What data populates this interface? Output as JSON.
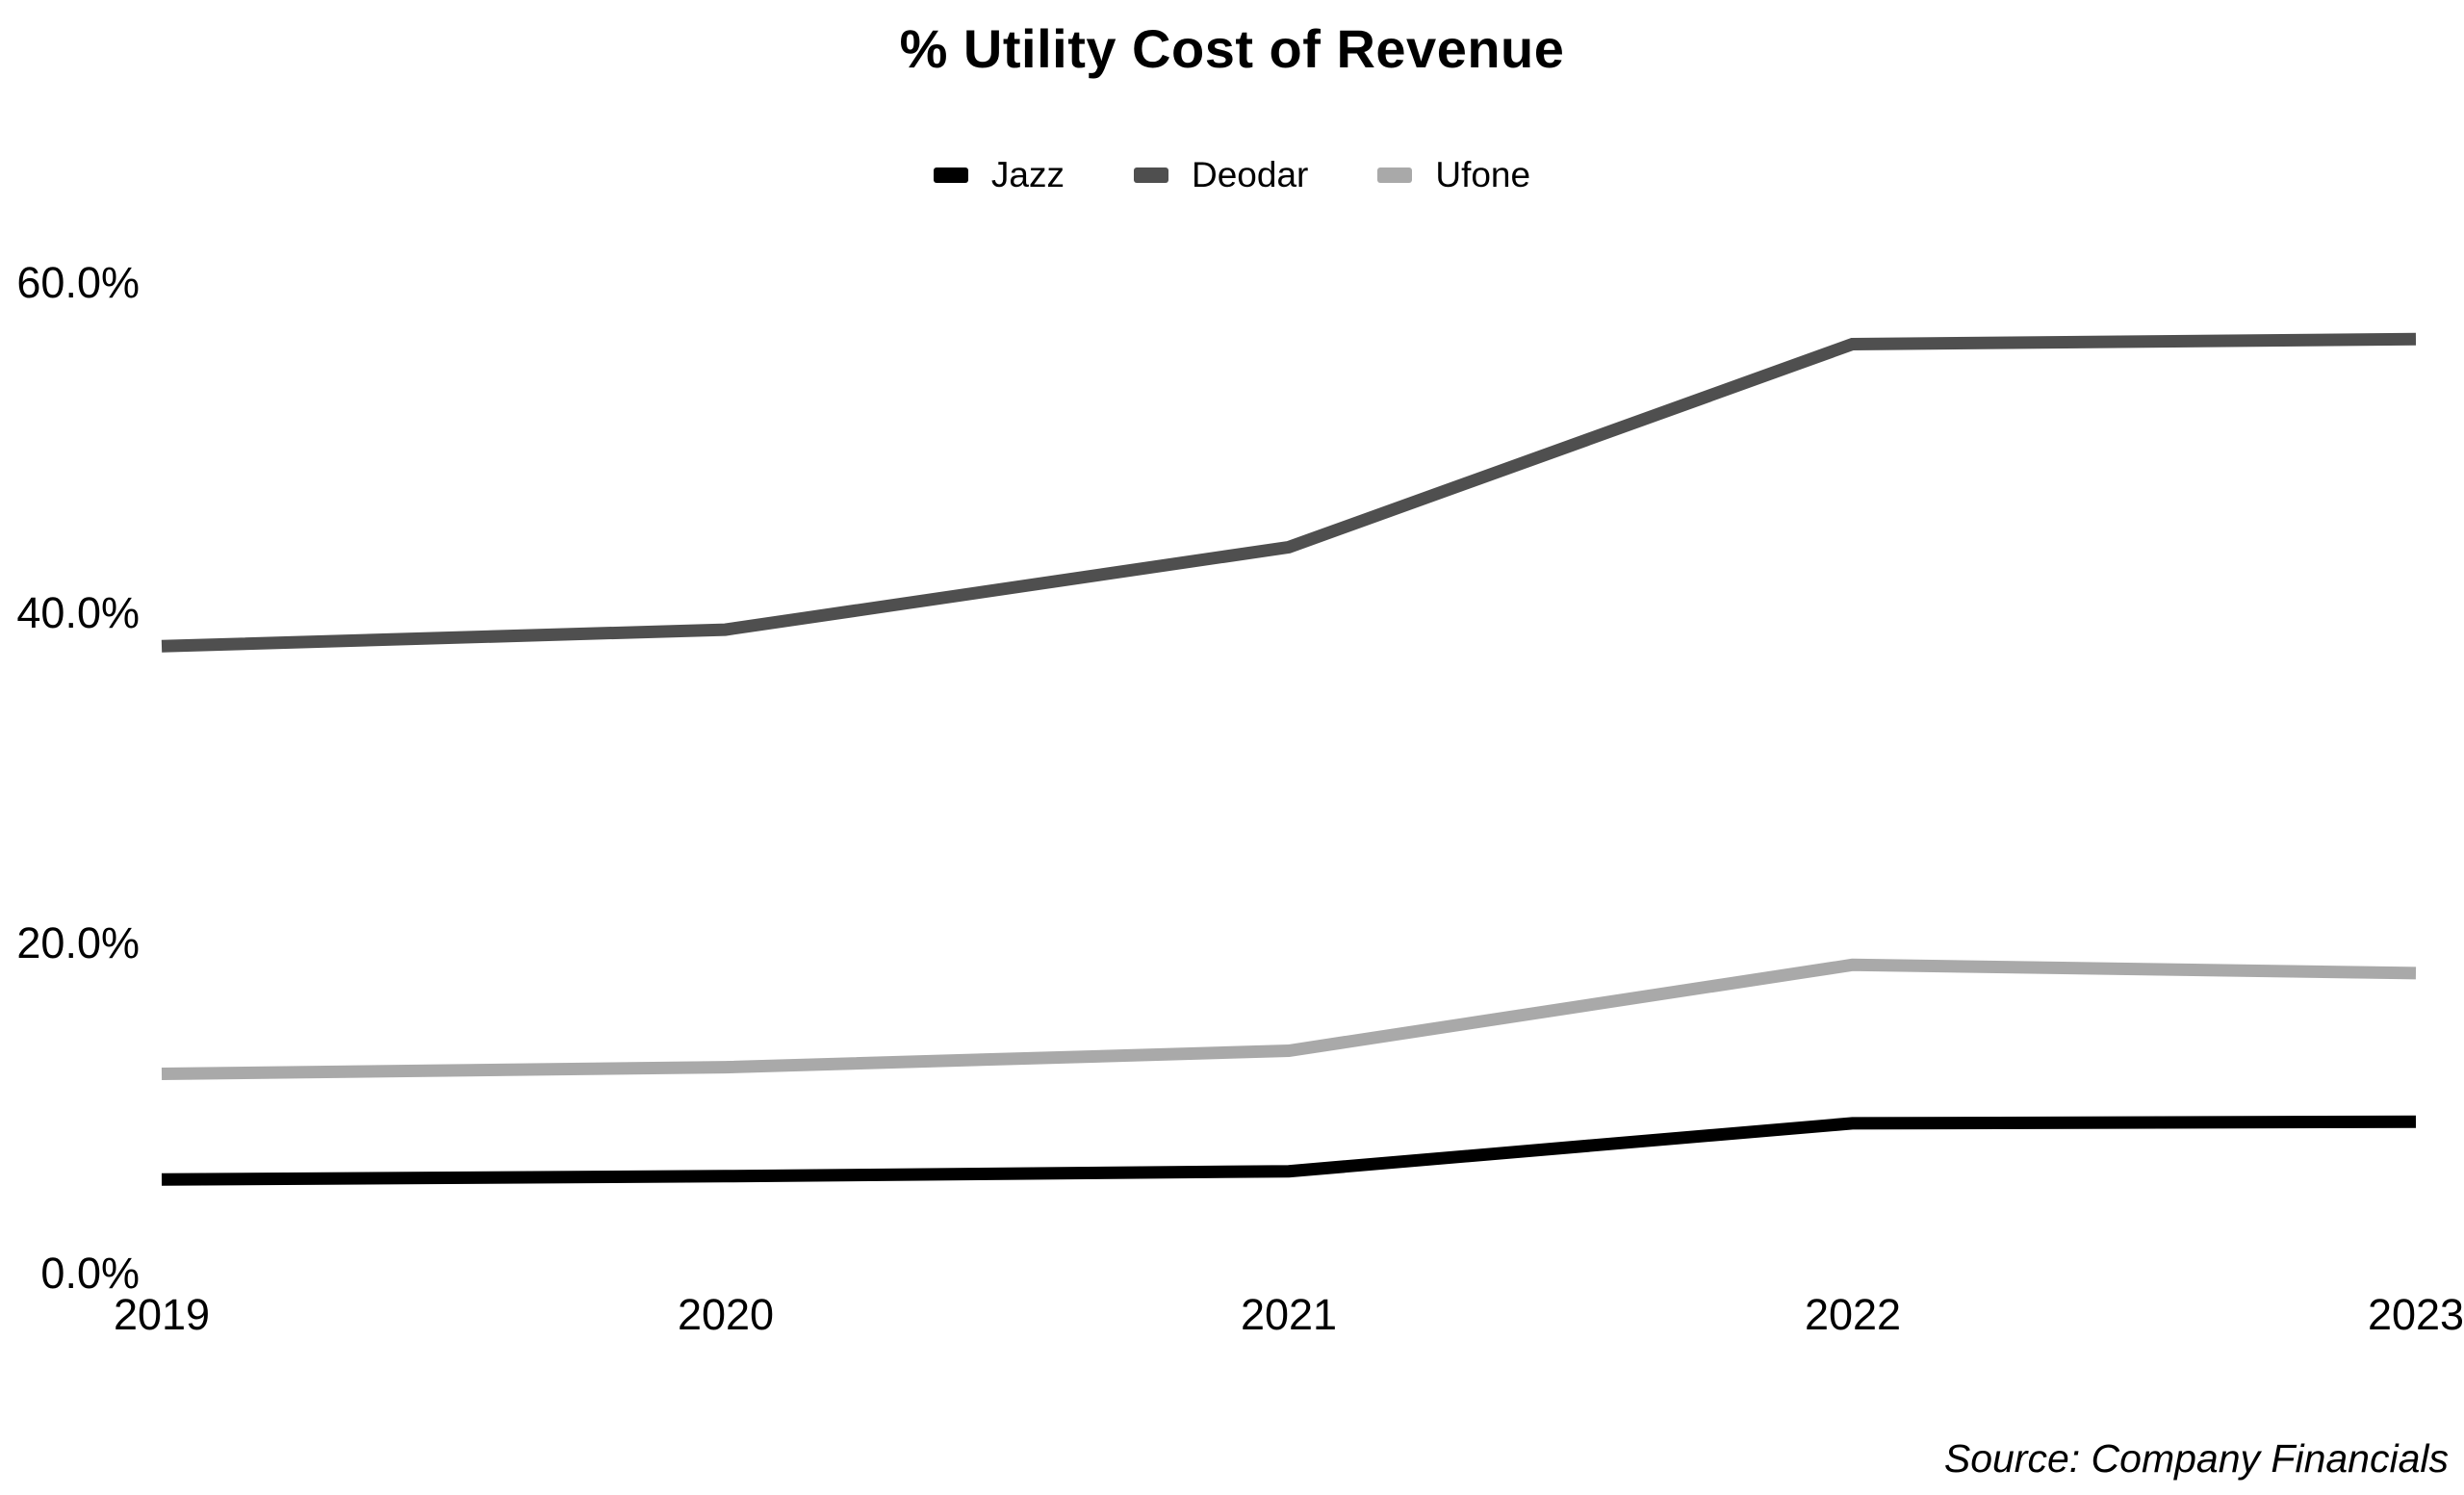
{
  "chart": {
    "title": "% Utility Cost of Revenue",
    "source_note": "Source: Company Financials"
  },
  "chart_data": {
    "type": "line",
    "title": "% Utility Cost of Revenue",
    "categories": [
      "2019",
      "2020",
      "2021",
      "2022",
      "2023"
    ],
    "series": [
      {
        "name": "Jazz",
        "color": "#000000",
        "values": [
          5.7,
          5.9,
          6.2,
          9.1,
          9.2
        ]
      },
      {
        "name": "Deodar",
        "color": "#4f4f4f",
        "values": [
          38.0,
          39.0,
          44.0,
          56.3,
          56.6
        ]
      },
      {
        "name": "Ufone",
        "color": "#a9a9a9",
        "values": [
          12.1,
          12.5,
          13.5,
          18.7,
          18.2
        ]
      }
    ],
    "legend_order": [
      "Jazz",
      "Deodar",
      "Ufone"
    ],
    "xlabel": "",
    "ylabel": "",
    "ylim": [
      0,
      60
    ],
    "y_ticks": [
      {
        "label": "60.0%",
        "value": 60
      },
      {
        "label": "40.0%",
        "value": 40
      },
      {
        "label": "20.0%",
        "value": 20
      },
      {
        "label": "0.0%",
        "value": 0
      }
    ],
    "grid": false,
    "legend_position": "top",
    "source_note": "Source: Company Financials"
  }
}
